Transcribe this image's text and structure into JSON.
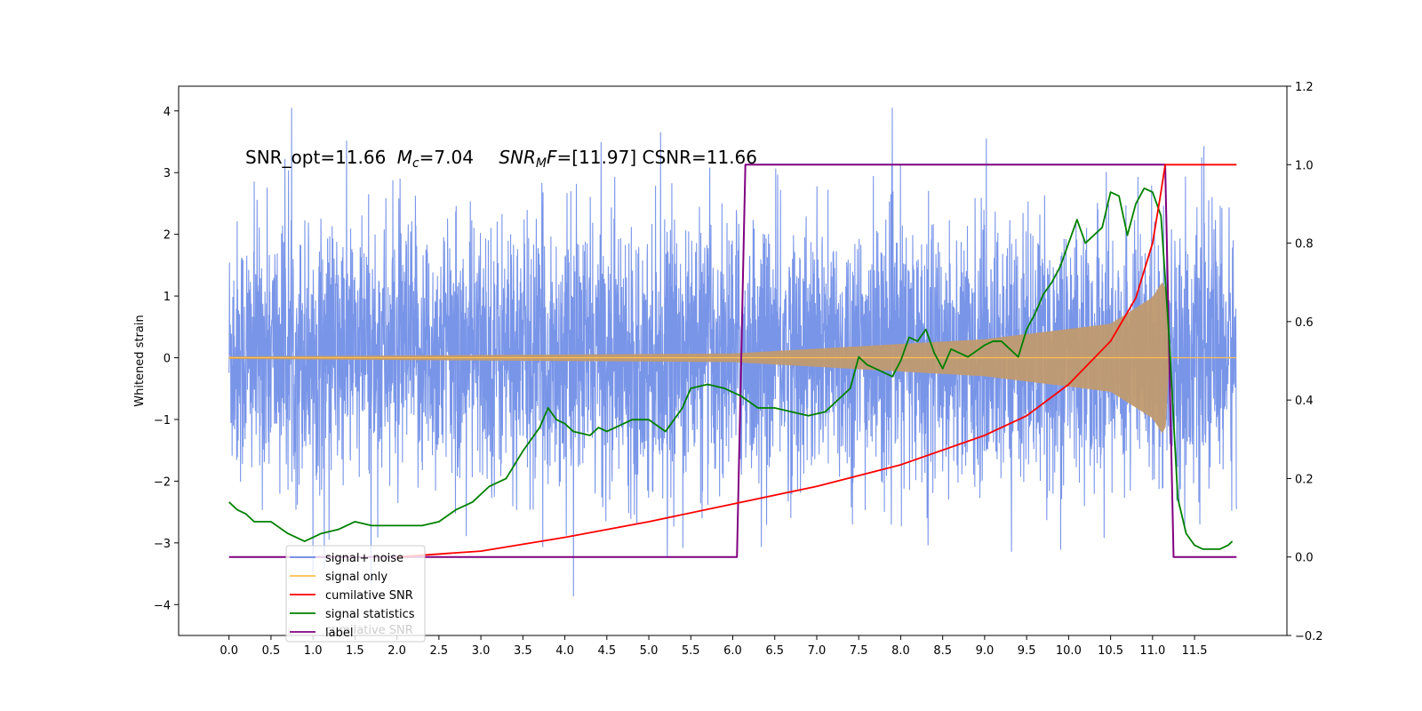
{
  "chart_data": {
    "type": "line",
    "title": "",
    "xlabel": "",
    "ylabel": "Whitened strain",
    "xlim": [
      -0.6,
      12.6
    ],
    "ylim": [
      -4.5,
      4.4
    ],
    "y2lim": [
      -0.2,
      1.2
    ],
    "grid": false,
    "legend_position": "lower-left",
    "x_ticks": [
      "0.0",
      "0.5",
      "1.0",
      "1.5",
      "2.0",
      "2.5",
      "3.0",
      "3.5",
      "4.0",
      "4.5",
      "5.0",
      "5.5",
      "6.0",
      "6.5",
      "7.0",
      "7.5",
      "8.0",
      "8.5",
      "9.0",
      "9.5",
      "10.0",
      "10.5",
      "11.0",
      "11.5"
    ],
    "y_ticks": [
      "4",
      "3",
      "2",
      "1",
      "0",
      "−1",
      "−2",
      "−3",
      "−4"
    ],
    "y2_ticks": [
      "1.2",
      "1.0",
      "0.8",
      "0.6",
      "0.4",
      "0.2",
      "0.0",
      "−0.2"
    ],
    "annotation": {
      "prefix": "SNR_opt=11.66",
      "mc_symbol": "M",
      "mc_sub": "c",
      "mc_value": "=7.04",
      "snr_symbol": "SNR",
      "snr_sub": "M",
      "snr_f": "F",
      "snr_value": "=[11.97] CSNR=11.66"
    },
    "legend": [
      {
        "name": "signal+ noise",
        "color": "#6a8ae6"
      },
      {
        "name": "signal only",
        "color": "#ffbf4d"
      },
      {
        "name": "cumilative SNR",
        "color": "#ff0000"
      },
      {
        "name": "signal statistics",
        "color": "#008000"
      },
      {
        "name": "label",
        "color": "#800080"
      }
    ],
    "legend_ghost_text": "cumilative SNR",
    "series": {
      "signal_plus_noise": {
        "color": "#6a8ae6",
        "x_range": [
          0.0,
          12.0
        ],
        "typical_band": [
          -2.3,
          2.5
        ],
        "min": -4.1,
        "max": 4.05
      },
      "signal_only": {
        "color": "#ffbf4d",
        "x_range": [
          0.0,
          12.0
        ],
        "envelope": {
          "x": [
            0.0,
            6.0,
            9.0,
            10.5,
            11.0,
            11.15,
            11.2
          ],
          "amplitude": [
            0.02,
            0.07,
            0.3,
            0.55,
            0.98,
            1.3,
            0.0
          ]
        }
      },
      "cumulative_snr": {
        "color": "#ff0000",
        "axis": "right",
        "x": [
          2.0,
          3.0,
          4.0,
          5.0,
          6.0,
          7.0,
          8.0,
          9.0,
          9.5,
          10.0,
          10.5,
          10.8,
          11.0,
          11.1,
          11.15,
          12.0
        ],
        "y": [
          0.0,
          0.015,
          0.05,
          0.09,
          0.135,
          0.18,
          0.235,
          0.31,
          0.36,
          0.44,
          0.55,
          0.66,
          0.8,
          0.93,
          1.0,
          1.0
        ]
      },
      "signal_statistics": {
        "color": "#008000",
        "axis": "right",
        "x": [
          0.0,
          0.1,
          0.2,
          0.3,
          0.5,
          0.7,
          0.9,
          1.1,
          1.3,
          1.5,
          1.7,
          1.9,
          2.1,
          2.3,
          2.5,
          2.7,
          2.9,
          3.1,
          3.3,
          3.5,
          3.7,
          3.8,
          3.9,
          4.0,
          4.1,
          4.3,
          4.4,
          4.5,
          4.7,
          4.8,
          5.0,
          5.2,
          5.4,
          5.5,
          5.7,
          5.9,
          6.1,
          6.3,
          6.5,
          6.7,
          6.9,
          7.1,
          7.3,
          7.4,
          7.5,
          7.6,
          7.8,
          7.9,
          8.0,
          8.1,
          8.2,
          8.3,
          8.4,
          8.5,
          8.6,
          8.8,
          9.0,
          9.1,
          9.2,
          9.4,
          9.5,
          9.6,
          9.7,
          9.8,
          9.9,
          10.0,
          10.1,
          10.2,
          10.4,
          10.5,
          10.6,
          10.7,
          10.8,
          10.9,
          11.0,
          11.1,
          11.2,
          11.3,
          11.4,
          11.5,
          11.6,
          11.7,
          11.8,
          11.9,
          11.95
        ],
        "y": [
          0.14,
          0.12,
          0.11,
          0.09,
          0.09,
          0.06,
          0.04,
          0.06,
          0.07,
          0.09,
          0.08,
          0.08,
          0.08,
          0.08,
          0.09,
          0.12,
          0.14,
          0.18,
          0.2,
          0.27,
          0.33,
          0.38,
          0.35,
          0.34,
          0.32,
          0.31,
          0.33,
          0.32,
          0.34,
          0.35,
          0.35,
          0.32,
          0.38,
          0.43,
          0.44,
          0.43,
          0.41,
          0.38,
          0.38,
          0.37,
          0.36,
          0.37,
          0.41,
          0.43,
          0.51,
          0.49,
          0.47,
          0.46,
          0.5,
          0.56,
          0.55,
          0.58,
          0.52,
          0.48,
          0.53,
          0.51,
          0.54,
          0.55,
          0.55,
          0.51,
          0.58,
          0.62,
          0.67,
          0.7,
          0.74,
          0.8,
          0.86,
          0.8,
          0.84,
          0.93,
          0.92,
          0.82,
          0.9,
          0.94,
          0.93,
          0.87,
          0.55,
          0.15,
          0.06,
          0.03,
          0.02,
          0.02,
          0.02,
          0.03,
          0.04
        ]
      },
      "label": {
        "color": "#800080",
        "axis": "right",
        "x": [
          0.0,
          6.05,
          6.15,
          11.15,
          11.25,
          12.0
        ],
        "y": [
          0.0,
          0.0,
          1.0,
          1.0,
          0.0,
          0.0
        ]
      }
    }
  }
}
